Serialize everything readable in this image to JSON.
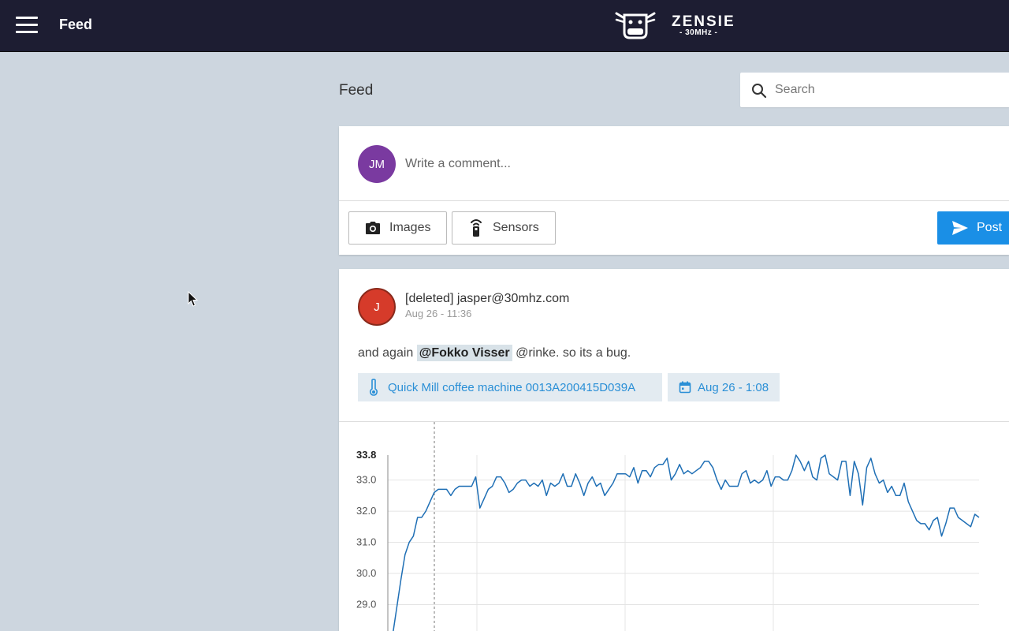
{
  "topbar": {
    "title": "Feed",
    "logo_name": "ZENSIE",
    "logo_sub": "- 30MHz -",
    "background": "#1d1d32"
  },
  "page": {
    "title": "Feed"
  },
  "search": {
    "placeholder": "Search",
    "icon": "search-icon"
  },
  "composer": {
    "avatar_initials": "JM",
    "avatar_color": "#7a3aa0",
    "placeholder": "Write a comment...",
    "images_label": "Images",
    "sensors_label": "Sensors",
    "post_label": "Post",
    "post_color": "#1a8fe6"
  },
  "post": {
    "avatar_initials": "J",
    "avatar_color": "#d63b2a",
    "author": "[deleted] jasper@30mhz.com",
    "time": "Aug 26 - 11:36",
    "body_before": "and again ",
    "mention": "@Fokko Visser",
    "body_after": " @rinke. so its a bug.",
    "sensor_chip": "Quick Mill coffee machine 0013A200415D039A",
    "date_chip": "Aug 26 - 1:08"
  },
  "chart_data": {
    "type": "line",
    "title": "",
    "xlabel": "",
    "ylabel": "",
    "y_ticks": [
      "33.8",
      "33.0",
      "32.0",
      "31.0",
      "30.0",
      "29.0"
    ],
    "ylim": [
      28.0,
      33.8
    ],
    "grid": true,
    "line_color": "#1f6fb5",
    "series": [
      {
        "values": [
          28.0,
          28.9,
          29.8,
          30.6,
          31.0,
          31.2,
          31.8,
          31.8,
          32.0,
          32.3,
          32.6,
          32.7,
          32.7,
          32.7,
          32.5,
          32.7,
          32.8,
          32.8,
          32.8,
          32.8,
          33.1,
          32.1,
          32.4,
          32.7,
          32.8,
          33.1,
          33.1,
          32.9,
          32.6,
          32.7,
          32.9,
          33.0,
          33.0,
          32.8,
          32.9,
          32.8,
          33.0,
          32.5,
          32.9,
          32.8,
          32.9,
          33.2,
          32.8,
          32.8,
          33.2,
          32.9,
          32.5,
          32.9,
          33.1,
          32.8,
          32.9,
          32.5,
          32.7,
          32.9,
          33.2,
          33.2,
          33.2,
          33.1,
          33.4,
          32.9,
          33.3,
          33.3,
          33.1,
          33.4,
          33.5,
          33.5,
          33.7,
          33.0,
          33.2,
          33.5,
          33.2,
          33.3,
          33.2,
          33.3,
          33.4,
          33.6,
          33.6,
          33.4,
          33.0,
          32.7,
          33.0,
          32.8,
          32.8,
          32.8,
          33.2,
          33.3,
          32.9,
          33.0,
          32.9,
          33.0,
          33.3,
          32.8,
          33.1,
          33.1,
          33.0,
          33.0,
          33.3,
          33.8,
          33.6,
          33.3,
          33.6,
          33.1,
          33.0,
          33.7,
          33.8,
          33.2,
          33.1,
          33.0,
          33.6,
          33.6,
          32.5,
          33.6,
          33.2,
          32.2,
          33.4,
          33.7,
          33.2,
          32.9,
          33.0,
          32.6,
          32.8,
          32.5,
          32.5,
          32.9,
          32.3,
          32.0,
          31.7,
          31.6,
          31.6,
          31.4,
          31.7,
          31.8,
          31.2,
          31.6,
          32.1,
          32.1,
          31.8,
          31.7,
          31.6,
          31.5,
          31.9,
          31.8
        ]
      }
    ]
  }
}
